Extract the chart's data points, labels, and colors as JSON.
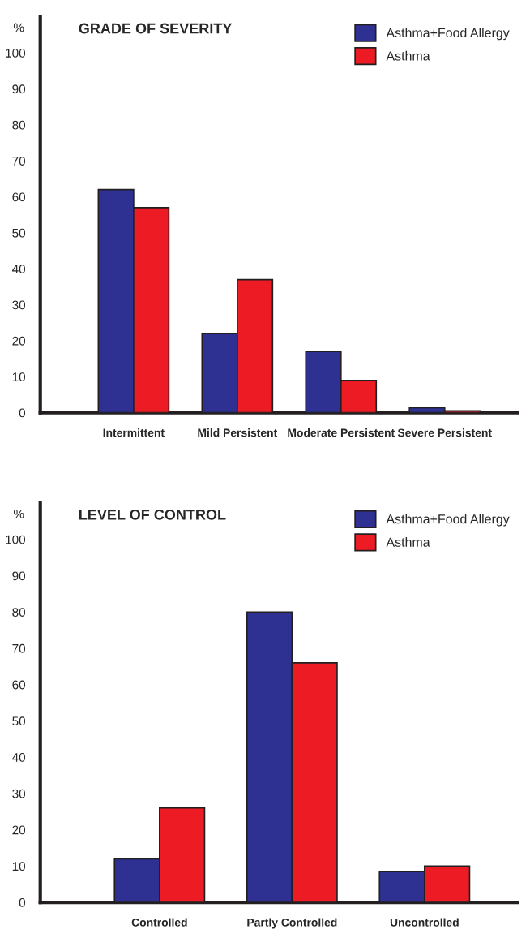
{
  "chart_data": [
    {
      "type": "bar",
      "title": "GRADE OF SEVERITY",
      "ylabel": "%",
      "categories": [
        "Intermittent",
        "Mild Persistent",
        "Moderate Persistent",
        "Severe Persistent"
      ],
      "series": [
        {
          "name": "Asthma+Food Allergy",
          "color": "#2e3192",
          "values": [
            62,
            22,
            17,
            1.4
          ]
        },
        {
          "name": "Asthma",
          "color": "#ed1c24",
          "values": [
            57,
            37,
            9,
            0.5
          ]
        }
      ],
      "ylim": [
        0,
        110
      ],
      "yticks": [
        0,
        10,
        20,
        30,
        40,
        50,
        60,
        70,
        80,
        90,
        100
      ],
      "grid": false,
      "legend": "top right"
    },
    {
      "type": "bar",
      "title": "LEVEL OF CONTROL",
      "ylabel": "%",
      "categories": [
        "Controlled",
        "Partly Controlled",
        "Uncontrolled"
      ],
      "series": [
        {
          "name": "Asthma+Food Allergy",
          "color": "#2e3192",
          "values": [
            12,
            80,
            8.5
          ]
        },
        {
          "name": "Asthma",
          "color": "#ed1c24",
          "values": [
            26,
            66,
            10
          ]
        }
      ],
      "ylim": [
        0,
        110
      ],
      "yticks": [
        0,
        10,
        20,
        30,
        40,
        50,
        60,
        70,
        80,
        90,
        100
      ],
      "grid": false,
      "legend": "top right"
    }
  ]
}
